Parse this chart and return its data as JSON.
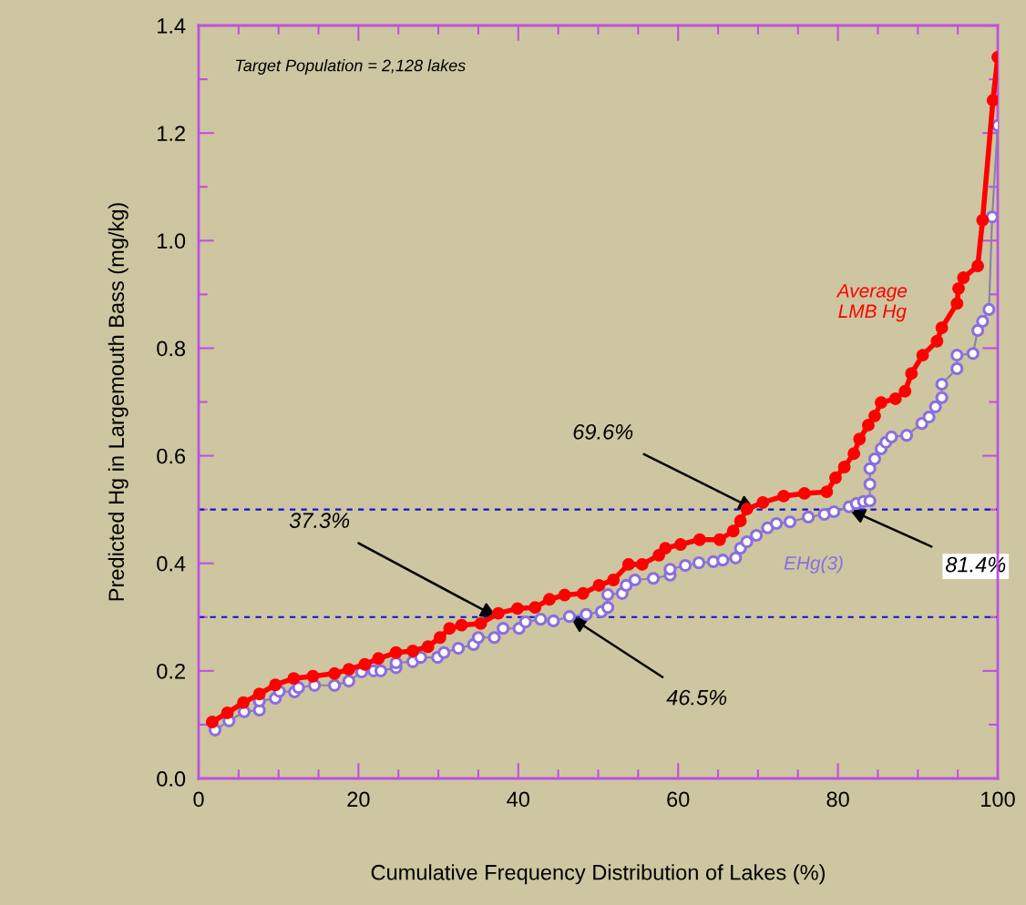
{
  "chart_data": {
    "type": "line",
    "xlabel": "Cumulative Frequency Distribution of Lakes (%)",
    "ylabel": "Predicted Hg in Largemouth Bass (mg/kg)",
    "xlim": [
      0,
      100
    ],
    "ylim": [
      0,
      1.4
    ],
    "xticks": [
      0,
      20,
      40,
      60,
      80,
      100
    ],
    "yticks": [
      {
        "value": 0,
        "label": "0.0"
      },
      0.2,
      0.4,
      0.6,
      0.8,
      {
        "value": 1.0,
        "label": "1.0"
      },
      1.2,
      1.4
    ],
    "grid": false,
    "legend": false,
    "series": [
      {
        "name": "Average LMB Hg",
        "color": "#ff0000",
        "marker": "circle",
        "x": [
          1.7,
          3.6,
          5.6,
          7.6,
          9.6,
          11.9,
          14.3,
          17,
          18.8,
          20.8,
          22.5,
          24.7,
          26.8,
          28.7,
          30.2,
          31.4,
          32.9,
          35.3,
          37.5,
          39.9,
          42.1,
          43.9,
          45.8,
          48.1,
          50.1,
          51.9,
          53.8,
          55.5,
          57.6,
          58.4,
          60.3,
          62.7,
          65.2,
          66.9,
          67.8,
          68.6,
          70.6,
          73.2,
          75.8,
          78.6,
          79.7,
          80.8,
          82,
          82.7,
          83.8,
          84.6,
          85.4,
          87.2,
          88.4,
          89.2,
          90.6,
          92.4,
          93,
          94.9,
          95.1,
          95.7,
          97.5,
          98.1,
          99.4,
          100
        ],
        "values": [
          0.105,
          0.122,
          0.141,
          0.157,
          0.174,
          0.186,
          0.19,
          0.195,
          0.203,
          0.212,
          0.223,
          0.234,
          0.237,
          0.245,
          0.262,
          0.279,
          0.285,
          0.288,
          0.307,
          0.316,
          0.318,
          0.333,
          0.341,
          0.344,
          0.359,
          0.369,
          0.398,
          0.398,
          0.415,
          0.428,
          0.435,
          0.444,
          0.444,
          0.46,
          0.479,
          0.501,
          0.513,
          0.525,
          0.53,
          0.533,
          0.559,
          0.579,
          0.604,
          0.631,
          0.657,
          0.674,
          0.699,
          0.706,
          0.72,
          0.753,
          0.787,
          0.813,
          0.838,
          0.883,
          0.911,
          0.931,
          0.953,
          1.038,
          1.261,
          1.341
        ]
      },
      {
        "name": "EHg(3)",
        "color": "#8a6ee0",
        "marker": "circle",
        "x": [
          2.05,
          3.8,
          5.7,
          7.6,
          7.6,
          9.6,
          10.1,
          12,
          12.5,
          14.5,
          17,
          18.8,
          20.4,
          21.9,
          22.8,
          24.7,
          24.7,
          26.8,
          27.8,
          29.9,
          30.7,
          32.5,
          34.4,
          35,
          37,
          38.1,
          40.1,
          40.9,
          42.8,
          44.4,
          46.4,
          48.5,
          50.4,
          51.2,
          51.2,
          53,
          53.5,
          54.6,
          56.9,
          59,
          59,
          60.9,
          62.6,
          64.4,
          65.6,
          67.2,
          67.8,
          68.6,
          69.8,
          71.2,
          72.3,
          74,
          76.3,
          78.3,
          79.5,
          81.4,
          82.3,
          83.2,
          84,
          84,
          84,
          84.6,
          85.4,
          86,
          86.7,
          88.6,
          90.5,
          91.4,
          92.2,
          93,
          93,
          94.9,
          94.9,
          96.9,
          97.5,
          98.1,
          98.9,
          99.3,
          100
        ],
        "values": [
          0.09,
          0.107,
          0.124,
          0.127,
          0.144,
          0.149,
          0.162,
          0.161,
          0.169,
          0.173,
          0.173,
          0.181,
          0.198,
          0.2,
          0.2,
          0.206,
          0.215,
          0.217,
          0.225,
          0.225,
          0.234,
          0.242,
          0.249,
          0.262,
          0.262,
          0.279,
          0.279,
          0.291,
          0.296,
          0.293,
          0.301,
          0.305,
          0.31,
          0.318,
          0.342,
          0.344,
          0.359,
          0.369,
          0.372,
          0.378,
          0.389,
          0.396,
          0.401,
          0.403,
          0.406,
          0.41,
          0.428,
          0.44,
          0.452,
          0.466,
          0.474,
          0.477,
          0.486,
          0.491,
          0.496,
          0.505,
          0.511,
          0.515,
          0.516,
          0.547,
          0.576,
          0.594,
          0.613,
          0.625,
          0.635,
          0.638,
          0.66,
          0.672,
          0.691,
          0.708,
          0.733,
          0.762,
          0.787,
          0.79,
          0.833,
          0.85,
          0.872,
          1.044,
          1.214
        ]
      }
    ],
    "ref_lines": [
      {
        "axis": "y",
        "value": 0.5,
        "color": "#1010d0",
        "line_style": "dashed"
      },
      {
        "axis": "y",
        "value": 0.3,
        "color": "#1010d0",
        "line_style": "dashed"
      }
    ],
    "annotations": [
      "Target Population = 2,128 lakes",
      {
        "text": "69.6%",
        "x": 69.6,
        "y": 0.5
      },
      {
        "text": "37.3%",
        "x": 37.3,
        "y": 0.3
      },
      {
        "text": "46.5%",
        "x": 46.5,
        "y": 0.3
      },
      {
        "text": "81.4%",
        "x": 81.4,
        "y": 0.5
      }
    ]
  }
}
